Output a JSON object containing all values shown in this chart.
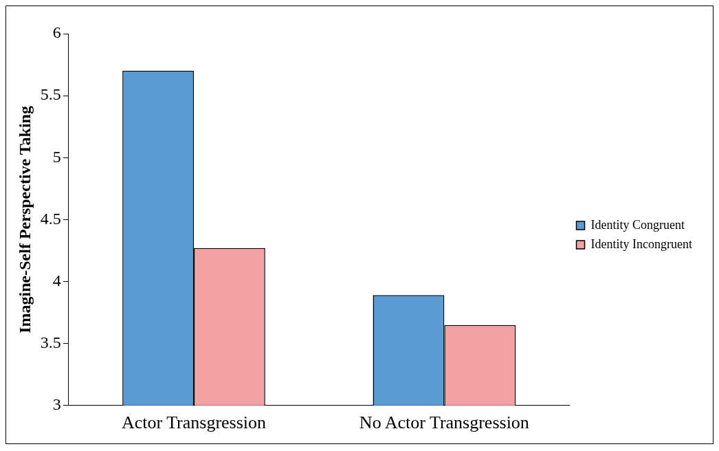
{
  "chart_data": {
    "type": "bar",
    "ylabel": "Imagine-Self Perspective Taking",
    "categories": [
      "Actor Transgression",
      "No Actor Transgression"
    ],
    "series": [
      {
        "name": "Identity Congruent",
        "color": "#5b9bd5",
        "values": [
          5.7,
          3.89
        ]
      },
      {
        "name": "Identity Incongruent",
        "color": "#f2a0a0",
        "values": [
          4.27,
          3.65
        ]
      }
    ],
    "ylim": [
      3,
      6
    ],
    "yticks": [
      3,
      3.5,
      4,
      4.5,
      5,
      5.5,
      6
    ],
    "grid": false,
    "legend": "right"
  }
}
